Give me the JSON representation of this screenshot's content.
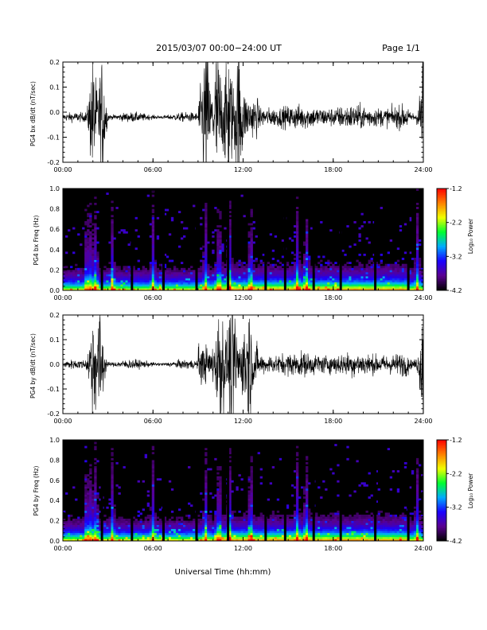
{
  "header": {
    "title": "2015/03/07  00:00−24:00 UT",
    "page": "Page 1/1"
  },
  "xaxis_label": "Universal Time (hh:mm)",
  "colorbar": {
    "label": "Log₁₀ Power",
    "ticks": [
      "-1.2",
      "-2.2",
      "-3.2",
      "-4.2"
    ],
    "range": [
      -4.2,
      -1.2
    ],
    "colors": [
      "#000000",
      "#5a0090",
      "#1a00ff",
      "#00aaff",
      "#00ff30",
      "#f0ff00",
      "#ff8000",
      "#ff0000"
    ]
  },
  "chart_data": [
    {
      "type": "line",
      "ylabel": "PG4 bx dB/dt (nT/sec)",
      "xlim": [
        0,
        24
      ],
      "ylim": [
        -0.2,
        0.2
      ],
      "xticks": [
        "00:00",
        "06:00",
        "12:00",
        "18:00",
        "24:00"
      ],
      "yticks": [
        "0.2",
        "0.1",
        "0.0",
        "-0.1",
        "-0.2"
      ],
      "grid": false,
      "series": [
        {
          "x_hours": [
            0,
            24
          ],
          "baseline": -0.02,
          "note_bursts_hours": [
            2.0,
            2.6,
            9.5,
            10.3,
            11.0,
            11.7,
            24.0
          ]
        }
      ]
    },
    {
      "type": "heatmap",
      "ylabel": "PG4 bx Freq (Hz)",
      "xlim": [
        0,
        24
      ],
      "ylim": [
        0,
        1
      ],
      "xticks": [
        "00:00",
        "06:00",
        "12:00",
        "18:00",
        "24:00"
      ],
      "yticks": [
        "1.0",
        "0.8",
        "0.6",
        "0.4",
        "0.2",
        "0.0"
      ],
      "dropout_hours": [
        2.6,
        4.6,
        6.7,
        8.9,
        11.0,
        13.5,
        14.8,
        16.7,
        18.5,
        20.8,
        23.0
      ]
    },
    {
      "type": "line",
      "ylabel": "PG4 by dB/dt (nT/sec)",
      "xlim": [
        0,
        24
      ],
      "ylim": [
        -0.2,
        0.2
      ],
      "xticks": [
        "00:00",
        "06:00",
        "12:00",
        "18:00",
        "24:00"
      ],
      "yticks": [
        "0.2",
        "0.1",
        "0.0",
        "-0.1",
        "-0.2"
      ],
      "grid": false,
      "series": [
        {
          "x_hours": [
            0,
            24
          ],
          "baseline": 0.0,
          "note_bursts_hours": [
            2.0,
            2.5,
            10.5,
            11.3,
            12.3,
            24.0
          ]
        }
      ]
    },
    {
      "type": "heatmap",
      "ylabel": "PG4 by Freq (Hz)",
      "xlim": [
        0,
        24
      ],
      "ylim": [
        0,
        1
      ],
      "xticks": [
        "00:00",
        "06:00",
        "12:00",
        "18:00",
        "24:00"
      ],
      "yticks": [
        "1.0",
        "0.8",
        "0.6",
        "0.4",
        "0.2",
        "0.0"
      ],
      "dropout_hours": [
        2.6,
        4.6,
        6.7,
        8.9,
        11.0,
        13.5,
        14.8,
        16.7,
        18.5,
        20.8,
        23.0
      ]
    }
  ]
}
